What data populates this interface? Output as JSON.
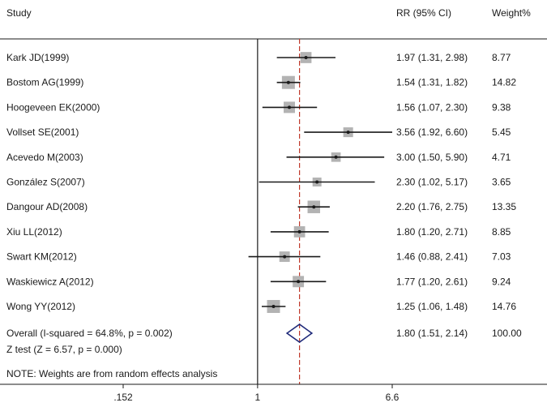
{
  "chart_data": {
    "type": "forest",
    "headers": {
      "study": "Study",
      "ci": "RR (95% CI)",
      "weight": "Weight%"
    },
    "studies": [
      {
        "name": "Kark JD(1999)",
        "rr": 1.97,
        "lo": 1.31,
        "hi": 2.98,
        "ci_text": "1.97 (1.31, 2.98)",
        "weight": "8.77"
      },
      {
        "name": "Bostom AG(1999)",
        "rr": 1.54,
        "lo": 1.31,
        "hi": 1.82,
        "ci_text": "1.54 (1.31, 1.82)",
        "weight": "14.82"
      },
      {
        "name": "Hoogeveen EK(2000)",
        "rr": 1.56,
        "lo": 1.07,
        "hi": 2.3,
        "ci_text": "1.56 (1.07, 2.30)",
        "weight": "9.38"
      },
      {
        "name": "Vollset SE(2001)",
        "rr": 3.56,
        "lo": 1.92,
        "hi": 6.6,
        "ci_text": "3.56 (1.92, 6.60)",
        "weight": "5.45"
      },
      {
        "name": "Acevedo M(2003)",
        "rr": 3.0,
        "lo": 1.5,
        "hi": 5.9,
        "ci_text": "3.00 (1.50, 5.90)",
        "weight": "4.71"
      },
      {
        "name": "González S(2007)",
        "rr": 2.3,
        "lo": 1.02,
        "hi": 5.17,
        "ci_text": "2.30 (1.02, 5.17)",
        "weight": "3.65"
      },
      {
        "name": "Dangour AD(2008)",
        "rr": 2.2,
        "lo": 1.76,
        "hi": 2.75,
        "ci_text": "2.20 (1.76, 2.75)",
        "weight": "13.35"
      },
      {
        "name": "Xiu LL(2012)",
        "rr": 1.8,
        "lo": 1.2,
        "hi": 2.71,
        "ci_text": "1.80 (1.20, 2.71)",
        "weight": "8.85"
      },
      {
        "name": "Swart KM(2012)",
        "rr": 1.46,
        "lo": 0.88,
        "hi": 2.41,
        "ci_text": "1.46 (0.88, 2.41)",
        "weight": "7.03"
      },
      {
        "name": "Waskiewicz A(2012)",
        "rr": 1.77,
        "lo": 1.2,
        "hi": 2.61,
        "ci_text": "1.77 (1.20, 2.61)",
        "weight": "9.24"
      },
      {
        "name": "Wong YY(2012)",
        "rr": 1.25,
        "lo": 1.06,
        "hi": 1.48,
        "ci_text": "1.25 (1.06, 1.48)",
        "weight": "14.76"
      }
    ],
    "overall": {
      "label": "Overall  (I-squared = 64.8%, p = 0.002)",
      "ztest": "Z test (Z = 6.57, p = 0.000)",
      "rr": 1.8,
      "lo": 1.51,
      "hi": 2.14,
      "ci_text": "1.80 (1.51, 2.14)",
      "weight": "100.00"
    },
    "note": "NOTE: Weights are from random effects analysis",
    "axis": {
      "scale": "log",
      "min": 0.152,
      "max": 6.6,
      "null_value": 1,
      "ticks": [
        {
          "value": 0.152,
          "label": ".152"
        },
        {
          "value": 1,
          "label": "1"
        },
        {
          "value": 6.6,
          "label": "6.6"
        }
      ]
    },
    "colors": {
      "line": "#1a1a1a",
      "square": "#b3b3b3",
      "dashed": "#c0392b",
      "diamond": "#1f2a7a"
    }
  }
}
